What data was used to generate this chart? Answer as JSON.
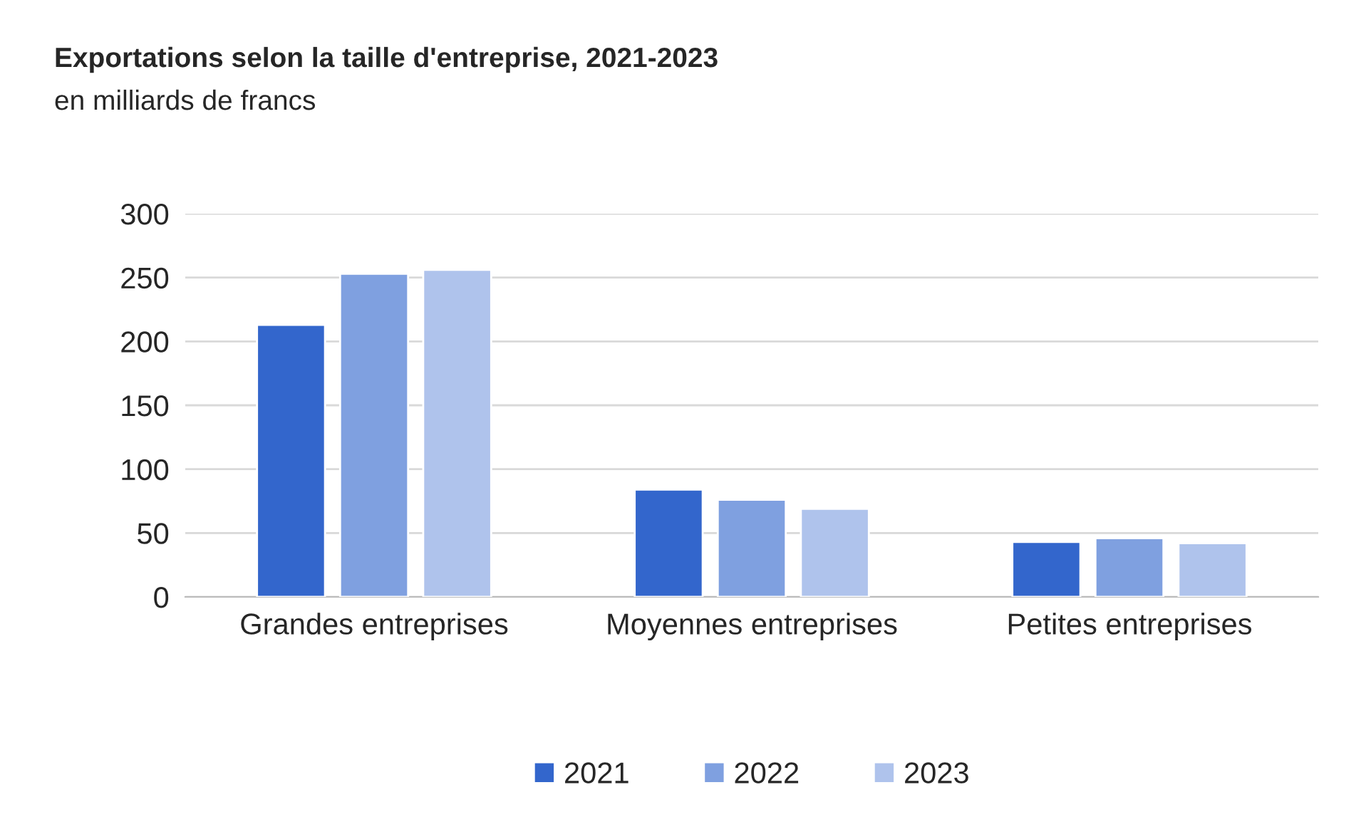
{
  "chart_data": {
    "type": "bar",
    "title": "Exportations selon la taille d'entreprise, 2021-2023",
    "subtitle": "en milliards de francs",
    "categories": [
      "Grandes entreprises",
      "Moyennes entreprises",
      "Petites entreprises"
    ],
    "series": [
      {
        "name": "2021",
        "color": "#3366cc",
        "values": [
          213,
          84,
          43
        ]
      },
      {
        "name": "2022",
        "color": "#7fa0e0",
        "values": [
          253,
          76,
          46
        ]
      },
      {
        "name": "2023",
        "color": "#afc3ec",
        "values": [
          256,
          69,
          42
        ]
      }
    ],
    "ylim": [
      0,
      300
    ],
    "yticks": [
      0,
      50,
      100,
      150,
      200,
      250,
      300
    ],
    "grid": "y",
    "legend": "bottom"
  }
}
